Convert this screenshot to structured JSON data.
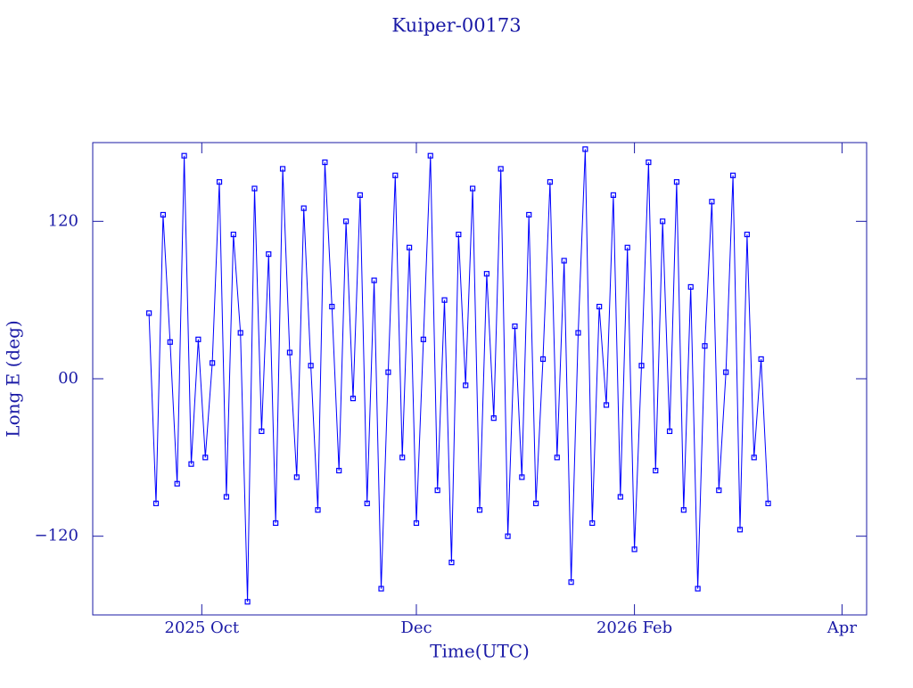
{
  "chart_data": {
    "type": "line",
    "title": "Kuiper-00173",
    "xlabel": "Time(UTC)",
    "ylabel": "Long E (deg)",
    "x": [
      "2025-09-16",
      "2025-09-18",
      "2025-09-20",
      "2025-09-22",
      "2025-09-24",
      "2025-09-26",
      "2025-09-28",
      "2025-09-30",
      "2025-10-02",
      "2025-10-04",
      "2025-10-06",
      "2025-10-08",
      "2025-10-10",
      "2025-10-12",
      "2025-10-14",
      "2025-10-16",
      "2025-10-18",
      "2025-10-20",
      "2025-10-22",
      "2025-10-24",
      "2025-10-26",
      "2025-10-28",
      "2025-10-30",
      "2025-11-01",
      "2025-11-03",
      "2025-11-05",
      "2025-11-07",
      "2025-11-09",
      "2025-11-11",
      "2025-11-13",
      "2025-11-15",
      "2025-11-17",
      "2025-11-19",
      "2025-11-21",
      "2025-11-23",
      "2025-11-25",
      "2025-11-27",
      "2025-11-29",
      "2025-12-01",
      "2025-12-03",
      "2025-12-05",
      "2025-12-07",
      "2025-12-09",
      "2025-12-11",
      "2025-12-13",
      "2025-12-15",
      "2025-12-17",
      "2025-12-19",
      "2025-12-21",
      "2025-12-23",
      "2025-12-25",
      "2025-12-27",
      "2025-12-29",
      "2025-12-31",
      "2026-01-02",
      "2026-01-04",
      "2026-01-06",
      "2026-01-08",
      "2026-01-10",
      "2026-01-12",
      "2026-01-14",
      "2026-01-16",
      "2026-01-18",
      "2026-01-20",
      "2026-01-22",
      "2026-01-24",
      "2026-01-26",
      "2026-01-28",
      "2026-01-30",
      "2026-02-01",
      "2026-02-03",
      "2026-02-05",
      "2026-02-07",
      "2026-02-09",
      "2026-02-11",
      "2026-02-13",
      "2026-02-15",
      "2026-02-17",
      "2026-02-19",
      "2026-02-21",
      "2026-02-23",
      "2026-02-25",
      "2026-02-27",
      "2026-03-01",
      "2026-03-03",
      "2026-03-05",
      "2026-03-07",
      "2026-03-09",
      "2026-03-11"
    ],
    "series": [
      {
        "name": "Long E",
        "color": "#0000ff",
        "values": [
          50,
          -95,
          125,
          28,
          -80,
          170,
          -65,
          30,
          -60,
          12,
          150,
          -90,
          110,
          35,
          -170,
          145,
          -40,
          95,
          -110,
          160,
          20,
          -75,
          130,
          10,
          -100,
          165,
          55,
          -70,
          120,
          -15,
          140,
          -95,
          75,
          -160,
          5,
          155,
          -60,
          100,
          -110,
          30,
          170,
          -85,
          60,
          -140,
          110,
          -5,
          145,
          -100,
          80,
          -30,
          160,
          -120,
          40,
          -75,
          125,
          -95,
          15,
          150,
          -60,
          90,
          -155,
          35,
          175,
          -110,
          55,
          -20,
          140,
          -90,
          100,
          -130,
          10,
          165,
          -70,
          120,
          -40,
          150,
          -100,
          70,
          -160,
          25,
          135,
          -85,
          5,
          155,
          -115,
          110,
          -60,
          15,
          -95
        ]
      }
    ],
    "xlim": [
      "2025-08-31",
      "2026-04-08"
    ],
    "xticks": [
      {
        "value": "2025-10-01",
        "label": "2025 Oct"
      },
      {
        "value": "2025-12-01",
        "label": "Dec"
      },
      {
        "value": "2026-02-01",
        "label": "2026 Feb"
      },
      {
        "value": "2026-04-01",
        "label": "Apr"
      }
    ],
    "ylim": [
      -180,
      180
    ],
    "yticks": [
      {
        "value": -120,
        "label": "−120"
      },
      {
        "value": 0,
        "label": "00"
      },
      120
    ]
  }
}
